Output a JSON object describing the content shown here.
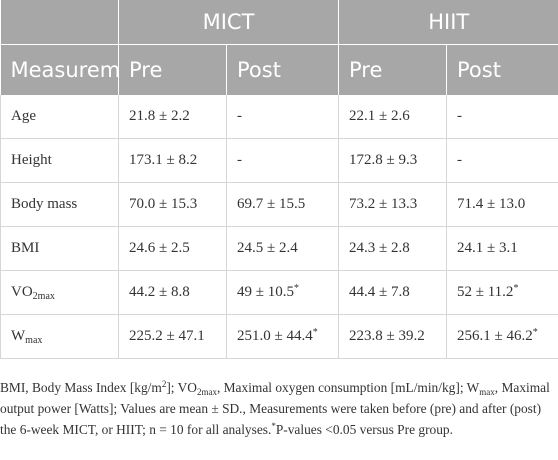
{
  "table": {
    "group_headers": [
      "MICT",
      "HIIT"
    ],
    "column_headers": [
      "Measurem",
      "Pre",
      "Post",
      "Pre",
      "Post"
    ],
    "rows": [
      {
        "label": "Age",
        "label_sub": "",
        "cells": [
          {
            "value": "21.8 ± 2.2",
            "mark": ""
          },
          {
            "value": "-",
            "mark": ""
          },
          {
            "value": "22.1 ± 2.6",
            "mark": ""
          },
          {
            "value": "-",
            "mark": ""
          }
        ]
      },
      {
        "label": "Height",
        "label_sub": "",
        "cells": [
          {
            "value": "173.1 ± 8.2",
            "mark": ""
          },
          {
            "value": "-",
            "mark": ""
          },
          {
            "value": "172.8 ± 9.3",
            "mark": ""
          },
          {
            "value": "-",
            "mark": ""
          }
        ]
      },
      {
        "label": "Body mass",
        "label_sub": "",
        "cells": [
          {
            "value": "70.0 ± 15.3",
            "mark": ""
          },
          {
            "value": "69.7 ± 15.5",
            "mark": ""
          },
          {
            "value": "73.2 ± 13.3",
            "mark": ""
          },
          {
            "value": "71.4 ± 13.0",
            "mark": ""
          }
        ]
      },
      {
        "label": "BMI",
        "label_sub": "",
        "cells": [
          {
            "value": "24.6 ± 2.5",
            "mark": ""
          },
          {
            "value": "24.5 ± 2.4",
            "mark": ""
          },
          {
            "value": "24.3 ± 2.8",
            "mark": ""
          },
          {
            "value": "24.1 ± 3.1",
            "mark": ""
          }
        ]
      },
      {
        "label": "VO",
        "label_sub": "2max",
        "cells": [
          {
            "value": "44.2 ± 8.8",
            "mark": ""
          },
          {
            "value": "49 ± 10.5",
            "mark": "*"
          },
          {
            "value": "44.4 ± 7.8",
            "mark": ""
          },
          {
            "value": "52 ± 11.2",
            "mark": "*"
          }
        ]
      },
      {
        "label": "W",
        "label_sub": "max",
        "cells": [
          {
            "value": "225.2 ± 47.1",
            "mark": ""
          },
          {
            "value": "251.0 ± 44.4",
            "mark": "*"
          },
          {
            "value": "223.8 ± 39.2",
            "mark": ""
          },
          {
            "value": "256.1 ± 46.2",
            "mark": "*"
          }
        ]
      }
    ]
  },
  "footnote": {
    "p1": "BMI, Body Mass Index [kg/m",
    "p1_sup": "2",
    "p2": "]; VO",
    "p2_sub": "2max",
    "p3": ", Maximal oxygen consumption [mL/min/kg]; W",
    "p3_sub": "max",
    "p4": ", Maximal output power [Watts]; Values are mean ± SD., Measurements were taken before (pre) and after (post) the 6-week MICT, or HIIT; n = 10 for all analyses.",
    "p4_sup": "*",
    "p5": "P-values <0.05 versus Pre group."
  }
}
